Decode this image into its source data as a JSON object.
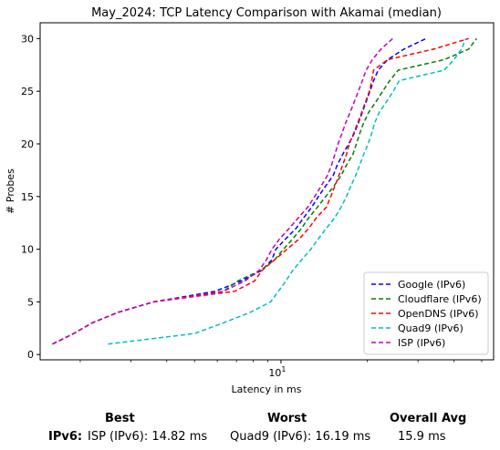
{
  "chart_data": {
    "type": "line",
    "title": "May_2024: TCP Latency Comparison with Akamai (median)",
    "xlabel": "Latency in ms",
    "ylabel": "# Probes",
    "x_scale": "log",
    "xlim": [
      1.45,
      55
    ],
    "ylim": [
      -0.5,
      31.5
    ],
    "x_tick_labels": [
      {
        "value": 10,
        "label": "10^1"
      }
    ],
    "y_ticks": [
      0,
      5,
      10,
      15,
      20,
      25,
      30
    ],
    "grid": false,
    "legend_position": "bottom-right",
    "series": [
      {
        "name": "Google (IPv6)",
        "color": "#0000ff",
        "x": [
          1.6,
          1.9,
          2.2,
          2.7,
          3.6,
          5.9,
          7.3,
          8.6,
          9.3,
          9.6,
          10.4,
          11.3,
          12.0,
          12.8,
          13.5,
          14.3,
          15.2,
          15.7,
          16.4,
          17.2,
          18.0,
          18.6,
          19.2,
          19.8,
          20.4,
          21.0,
          21.8,
          23.5,
          26.8,
          32.0
        ],
        "y": [
          1,
          2,
          3,
          4,
          5,
          6,
          7,
          8,
          9,
          10,
          11,
          12,
          13,
          14,
          15,
          16,
          17,
          18,
          19,
          20,
          21,
          22,
          23,
          24,
          25,
          26,
          27,
          28,
          29,
          30
        ]
      },
      {
        "name": "Cloudflare (IPv6)",
        "color": "#008000",
        "x": [
          1.6,
          1.9,
          2.2,
          2.7,
          3.6,
          6.3,
          7.1,
          8.5,
          9.5,
          10.2,
          11.0,
          11.8,
          12.5,
          13.4,
          14.3,
          15.3,
          16.2,
          16.9,
          17.8,
          18.3,
          18.8,
          19.4,
          20.2,
          21.4,
          22.6,
          23.9,
          25.6,
          37.0,
          45.0,
          48.0
        ],
        "y": [
          1,
          2,
          3,
          4,
          5,
          6,
          7,
          8,
          9,
          10,
          11,
          12,
          13,
          14,
          15,
          16,
          17,
          18,
          19,
          20,
          21,
          22,
          23,
          24,
          25,
          26,
          27,
          28,
          29,
          30
        ]
      },
      {
        "name": "OpenDNS (IPv6)",
        "color": "#ff0000",
        "x": [
          1.6,
          1.9,
          2.2,
          2.7,
          3.6,
          6.9,
          8.1,
          8.6,
          9.5,
          10.5,
          11.6,
          12.5,
          13.3,
          14.4,
          14.9,
          15.4,
          15.9,
          16.4,
          16.9,
          17.3,
          17.9,
          18.5,
          19.1,
          19.7,
          20.3,
          20.7,
          21.0,
          23.5,
          34.0,
          45.0
        ],
        "y": [
          1,
          2,
          3,
          4,
          5,
          6,
          7,
          8,
          9,
          10,
          11,
          12,
          13,
          14,
          15,
          16,
          17,
          18,
          19,
          20,
          21,
          22,
          23,
          24,
          25,
          26,
          27,
          28,
          29,
          30
        ]
      },
      {
        "name": "Quad9 (IPv6)",
        "color": "#00bfbf",
        "x": [
          2.5,
          5.0,
          6.3,
          7.8,
          9.2,
          9.8,
          10.4,
          11.0,
          11.8,
          12.7,
          13.5,
          14.4,
          15.4,
          16.2,
          16.9,
          17.5,
          18.2,
          18.8,
          19.4,
          20.1,
          20.7,
          21.2,
          22.0,
          23.3,
          24.6,
          25.8,
          37.0,
          40.0,
          42.5,
          44.0
        ],
        "y": [
          1,
          2,
          3,
          4,
          5,
          6,
          7,
          8,
          9,
          10,
          11,
          12,
          13,
          14,
          15,
          16,
          17,
          18,
          19,
          20,
          21,
          22,
          23,
          24,
          25,
          26,
          27,
          28,
          29,
          30
        ]
      },
      {
        "name": "ISP (IPv6)",
        "color": "#bf00bf",
        "x": [
          1.6,
          1.9,
          2.2,
          2.7,
          3.6,
          6.3,
          7.5,
          8.4,
          8.9,
          9.3,
          9.9,
          10.7,
          11.5,
          12.4,
          13.1,
          13.8,
          14.5,
          15.0,
          15.4,
          15.8,
          16.3,
          16.8,
          17.4,
          18.0,
          18.6,
          19.2,
          19.8,
          20.8,
          22.3,
          24.5
        ],
        "y": [
          1,
          2,
          3,
          4,
          5,
          6,
          7,
          8,
          9,
          10,
          11,
          12,
          13,
          14,
          15,
          16,
          17,
          18,
          19,
          20,
          21,
          22,
          23,
          24,
          25,
          26,
          27,
          28,
          29,
          30
        ]
      }
    ]
  },
  "summary": {
    "best_header": "Best",
    "worst_header": "Worst",
    "avg_header": "Overall Avg",
    "row_label": "IPv6:",
    "best_value": "ISP (IPv6): 14.82 ms",
    "worst_value": "Quad9 (IPv6): 16.19 ms",
    "avg_value": "15.9 ms"
  }
}
